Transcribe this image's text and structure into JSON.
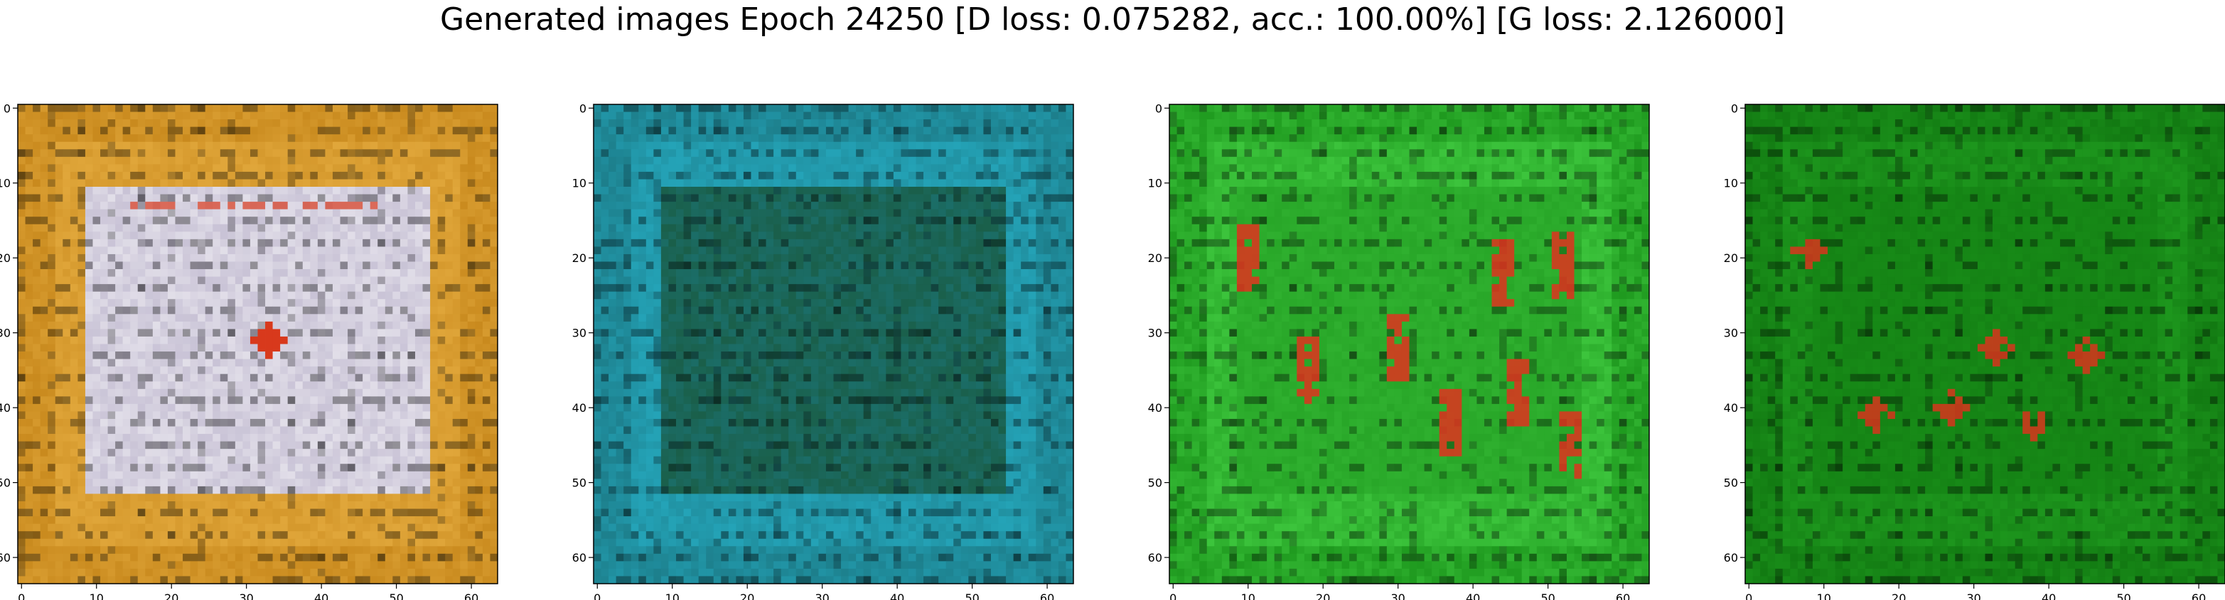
{
  "figure": {
    "title": "Generated images Epoch 24250 [D loss: 0.075282, acc.: 100.00%] [G loss: 2.126000]"
  },
  "chart_data": [
    {
      "type": "heatmap",
      "description": "Generated image 1: orange/gold border framing a white-lavender panel with a red dot near center",
      "xlim": [
        0,
        63
      ],
      "ylim": [
        63,
        0
      ],
      "x_ticks": [
        0,
        10,
        20,
        30,
        40,
        50,
        60
      ],
      "y_ticks": [
        0,
        10,
        20,
        30,
        40,
        50,
        60
      ],
      "palette": {
        "background": "#c98a1e",
        "frame": "#e0a63a",
        "panel": "#c9c3d6",
        "accent": "#d8391c"
      }
    },
    {
      "type": "heatmap",
      "description": "Generated image 2: teal/cyan image with dark horizontal and vertical banding",
      "xlim": [
        0,
        63
      ],
      "ylim": [
        63,
        0
      ],
      "x_ticks": [
        0,
        10,
        20,
        30,
        40,
        50,
        60
      ],
      "y_ticks": [
        0,
        10,
        20,
        30,
        40,
        50,
        60
      ],
      "palette": {
        "background": "#1d7f8c",
        "frame": "#24a3b7",
        "panel": "#1a5f4a",
        "accent": "#0a1c24"
      }
    },
    {
      "type": "heatmap",
      "description": "Generated image 3: bright green image with several red vertical blobs and dark streaks",
      "xlim": [
        0,
        63
      ],
      "ylim": [
        63,
        0
      ],
      "x_ticks": [
        0,
        10,
        20,
        30,
        40,
        50,
        60
      ],
      "y_ticks": [
        0,
        10,
        20,
        30,
        40,
        50,
        60
      ],
      "palette": {
        "background": "#1f9a1f",
        "frame": "#3cc43c",
        "panel": "#2fb02f",
        "accent": "#e0321e"
      }
    },
    {
      "type": "heatmap",
      "description": "Generated image 4: dark green image with faint texture and small red spots",
      "xlim": [
        0,
        63
      ],
      "ylim": [
        63,
        0
      ],
      "x_ticks": [
        0,
        10,
        20,
        30,
        40,
        50,
        60
      ],
      "y_ticks": [
        0,
        10,
        20,
        30,
        40,
        50,
        60
      ],
      "palette": {
        "background": "#127a12",
        "frame": "#1d961d",
        "panel": "#178a17",
        "accent": "#d8341c"
      }
    }
  ]
}
